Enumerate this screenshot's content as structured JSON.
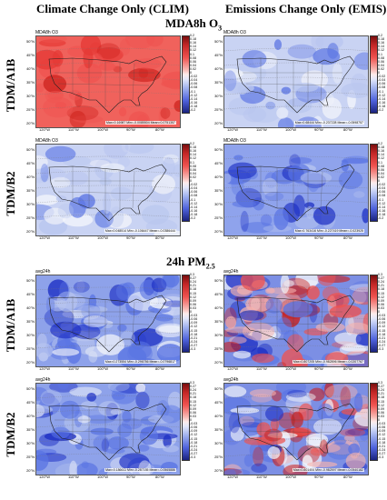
{
  "headers": {
    "left": "Climate Change Only (CLIM)",
    "right": "Emissions Change Only (EMIS)"
  },
  "sections": [
    {
      "title": "MDA8h O",
      "title_sub": "3",
      "rows": [
        {
          "label": "TDM/A1B",
          "panels": [
            {
              "title": "MDA8h O3",
              "scheme": "warm",
              "stats": "Max=0.16987 Min=-0.0085504 Mean=0.0751357"
            },
            {
              "title": "MDA8h O3",
              "scheme": "cool_light",
              "stats": "Max=0.68444 Min=-0.237228 Mean=-0.0598757"
            }
          ]
        },
        {
          "label": "TDM/B2",
          "panels": [
            {
              "title": "MDA8h O3",
              "scheme": "cool_light",
              "stats": "Max=0.048514 Min=-0.106447 Mean=-0.0386444"
            },
            {
              "title": "MDA8h O3",
              "scheme": "cool",
              "stats": "Max=0.763416 Min=-0.227419 Mean=-0.023925"
            }
          ]
        }
      ],
      "colorbar": {
        "ticks": [
          "0.2",
          "0.18",
          "0.16",
          "0.14",
          "0.12",
          "0.1",
          "0.08",
          "0.06",
          "0.04",
          "0.02",
          "0",
          "-0.02",
          "-0.04",
          "-0.06",
          "-0.08",
          "-0.1",
          "-0.12",
          "-0.14",
          "-0.16",
          "-0.18",
          "-0.2"
        ]
      }
    },
    {
      "title": "24h PM",
      "title_sub": "2.5",
      "rows": [
        {
          "label": "TDM/A1B",
          "panels": [
            {
              "title": "avg24h",
              "scheme": "pm_clim",
              "stats": "Max=0.273554 Min=-0.296786 Mean=-0.0796817"
            },
            {
              "title": "avg24h",
              "scheme": "pm_emis",
              "stats": "Max=0.807205 Min=-0.982896 Mean=-0.0207767"
            }
          ]
        },
        {
          "label": "TDM/B2",
          "panels": [
            {
              "title": "avg24h",
              "scheme": "pm_clim",
              "stats": "Max=0.186611 Min=-0.287155 Mean=-0.0565886"
            },
            {
              "title": "avg24h",
              "scheme": "pm_emis",
              "stats": "Max=0.801404 Min=-0.982597 Mean=-0.0540182"
            }
          ]
        }
      ],
      "colorbar": {
        "ticks": [
          "0.3",
          "0.27",
          "0.24",
          "0.21",
          "0.18",
          "0.15",
          "0.12",
          "0.09",
          "0.06",
          "0.03",
          "0",
          "-0.03",
          "-0.06",
          "-0.09",
          "-0.12",
          "-0.15",
          "-0.18",
          "-0.21",
          "-0.24",
          "-0.27",
          "-0.3"
        ]
      }
    }
  ],
  "axes": {
    "lat_labels": [
      "50°N",
      "45°N",
      "40°N",
      "35°N",
      "30°N",
      "25°N",
      "20°N"
    ],
    "lon_labels": [
      "120°W",
      "110°W",
      "100°W",
      "90°W",
      "80°W"
    ]
  },
  "colors": {
    "strong_red": "#cc1f1a",
    "red": "#ef5350",
    "light_red": "#f7b3ae",
    "white": "#f4f6fb",
    "light_blue": "#b9c6ef",
    "blue": "#5a74e3",
    "dark_blue": "#1d2fc4",
    "border": "#333333"
  }
}
